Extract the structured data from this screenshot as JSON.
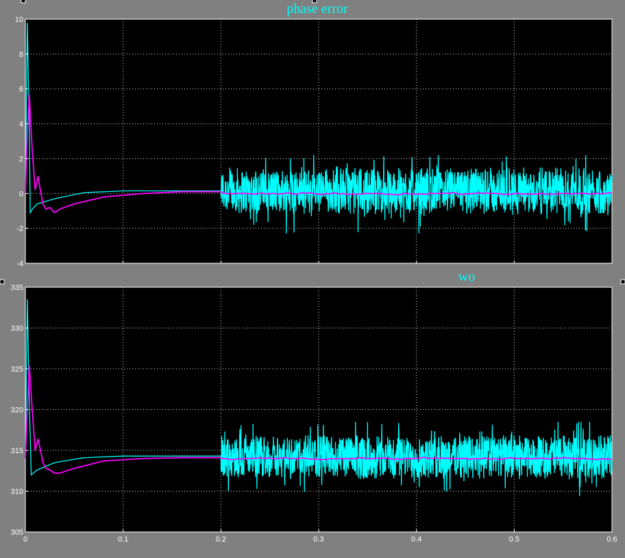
{
  "window": {
    "background": "#808080",
    "plot_background": "#000000",
    "axis_color": "#ffffff"
  },
  "chart_data": [
    {
      "type": "line",
      "title": "phase error",
      "xlabel": "",
      "ylabel": "",
      "xlim": [
        0,
        0.6
      ],
      "ylim": [
        -4,
        10
      ],
      "xticks": [
        "0",
        "0.1",
        "0.2",
        "0.3",
        "0.4",
        "0.5",
        "0.6"
      ],
      "yticks": [
        "-4",
        "-2",
        "0",
        "2",
        "4",
        "6",
        "8",
        "10"
      ],
      "grid": true,
      "noise_after_x": 0.2,
      "series": [
        {
          "color": "#00ffff",
          "x": [
            0,
            0.002,
            0.004,
            0.005,
            0.007,
            0.012,
            0.03,
            0.06,
            0.1,
            0.15,
            0.2
          ],
          "y": [
            0,
            9.8,
            4.0,
            -1.1,
            -0.9,
            -0.6,
            -0.3,
            0.05,
            0.15,
            0.15,
            0.15
          ],
          "noise_mean": 0.15,
          "noise_range": [
            -2.3,
            2.2
          ]
        },
        {
          "color": "#ff00ff",
          "x": [
            0,
            0.002,
            0.004,
            0.007,
            0.01,
            0.013,
            0.015,
            0.018,
            0.021,
            0.025,
            0.03,
            0.035,
            0.05,
            0.08,
            0.12,
            0.16,
            0.2
          ],
          "y": [
            0,
            3.5,
            5.7,
            2.5,
            0.2,
            1.0,
            0.3,
            -0.6,
            -0.9,
            -0.8,
            -1.1,
            -0.9,
            -0.6,
            -0.2,
            0.0,
            0.1,
            0.1
          ],
          "noise_mean": 0.0,
          "noise_range": [
            -0.15,
            0.15
          ]
        }
      ]
    },
    {
      "type": "line",
      "title": "wo",
      "xlabel": "",
      "ylabel": "",
      "xlim": [
        0,
        0.6
      ],
      "ylim": [
        305,
        335
      ],
      "xticks": [
        "0",
        "0.1",
        "0.2",
        "0.3",
        "0.4",
        "0.5",
        "0.6"
      ],
      "yticks": [
        "305",
        "310",
        "315",
        "320",
        "325",
        "330",
        "335"
      ],
      "grid": true,
      "noise_after_x": 0.2,
      "series": [
        {
          "color": "#00ffff",
          "x": [
            0,
            0.002,
            0.004,
            0.006,
            0.012,
            0.03,
            0.06,
            0.1,
            0.15,
            0.2
          ],
          "y": [
            314,
            333.5,
            321,
            312,
            312.6,
            313.5,
            314.1,
            314.3,
            314.3,
            314.3
          ],
          "noise_mean": 314.2,
          "noise_range": [
            309.3,
            318.5
          ]
        },
        {
          "color": "#ff00ff",
          "x": [
            0,
            0.002,
            0.004,
            0.007,
            0.01,
            0.013,
            0.015,
            0.018,
            0.021,
            0.025,
            0.03,
            0.035,
            0.05,
            0.08,
            0.12,
            0.16,
            0.2
          ],
          "y": [
            314,
            320,
            325.5,
            320,
            315,
            316.4,
            315.3,
            313.5,
            312.8,
            312.6,
            312.2,
            312.2,
            312.8,
            313.7,
            314.0,
            314.1,
            314.1
          ],
          "noise_mean": 314.0,
          "noise_range": [
            313.7,
            314.4
          ]
        }
      ]
    }
  ]
}
